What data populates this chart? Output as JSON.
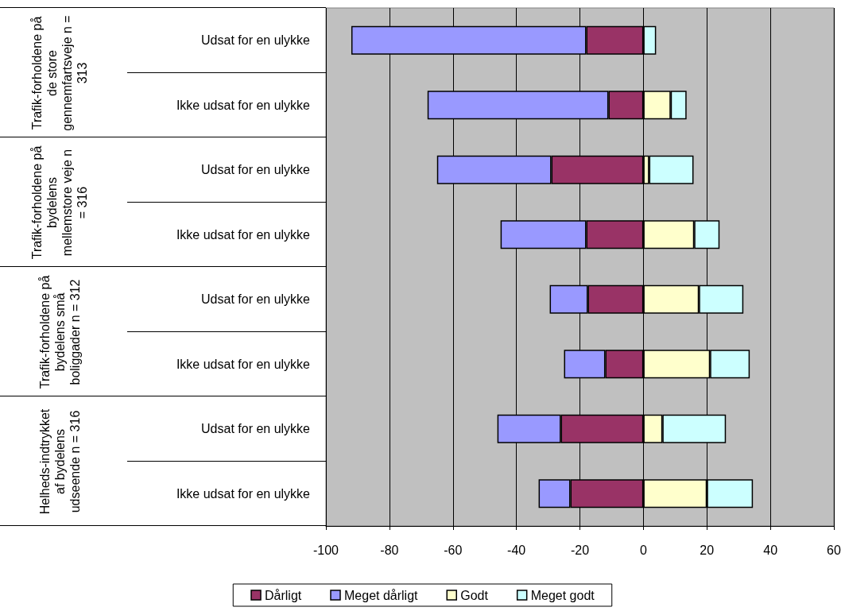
{
  "chart_data": {
    "type": "bar",
    "orientation": "horizontal",
    "stacked": true,
    "categories": [
      "Udsat for en ulykke",
      "Ikke udsat for en ulykke",
      "Udsat for en ulykke",
      "Ikke udsat for en ulykke",
      "Udsat for en ulykke",
      "Ikke udsat for en ulykke",
      "Udsat for en ulykke",
      "Ikke udsat for en ulykke"
    ],
    "annotations": [
      "Trafik-forholdene på de store gennemfartsveje n = 313",
      "Trafik-forholdene på bydelens mellemstore veje n = 316",
      "Trafik-forholdene på bydelens små boliggader n = 312",
      "Helheds-indtrykket af bydelens udseende n = 316"
    ],
    "series": [
      {
        "name": "Dårligt",
        "color": "#993366",
        "values": [
          -18,
          -11,
          -29,
          -18,
          -17.5,
          -12,
          -26,
          -23
        ]
      },
      {
        "name": "Meget dårligt",
        "color": "#9999ff",
        "values": [
          -74,
          -57,
          -36,
          -27,
          -12,
          -13,
          -20,
          -10
        ]
      },
      {
        "name": "Godt",
        "color": "#ffffcc",
        "values": [
          null,
          8.6,
          1.8,
          16,
          17.5,
          21,
          6,
          20
        ]
      },
      {
        "name": "Meget godt",
        "color": "#ccffff",
        "values": [
          4,
          5,
          14,
          8,
          14,
          12.5,
          20,
          14.5
        ]
      }
    ],
    "xlim": [
      -100,
      60
    ],
    "xticks": [
      -100,
      -80,
      -60,
      -40,
      -20,
      0,
      20,
      40,
      60
    ],
    "grid": "x",
    "legend": "bottom"
  }
}
